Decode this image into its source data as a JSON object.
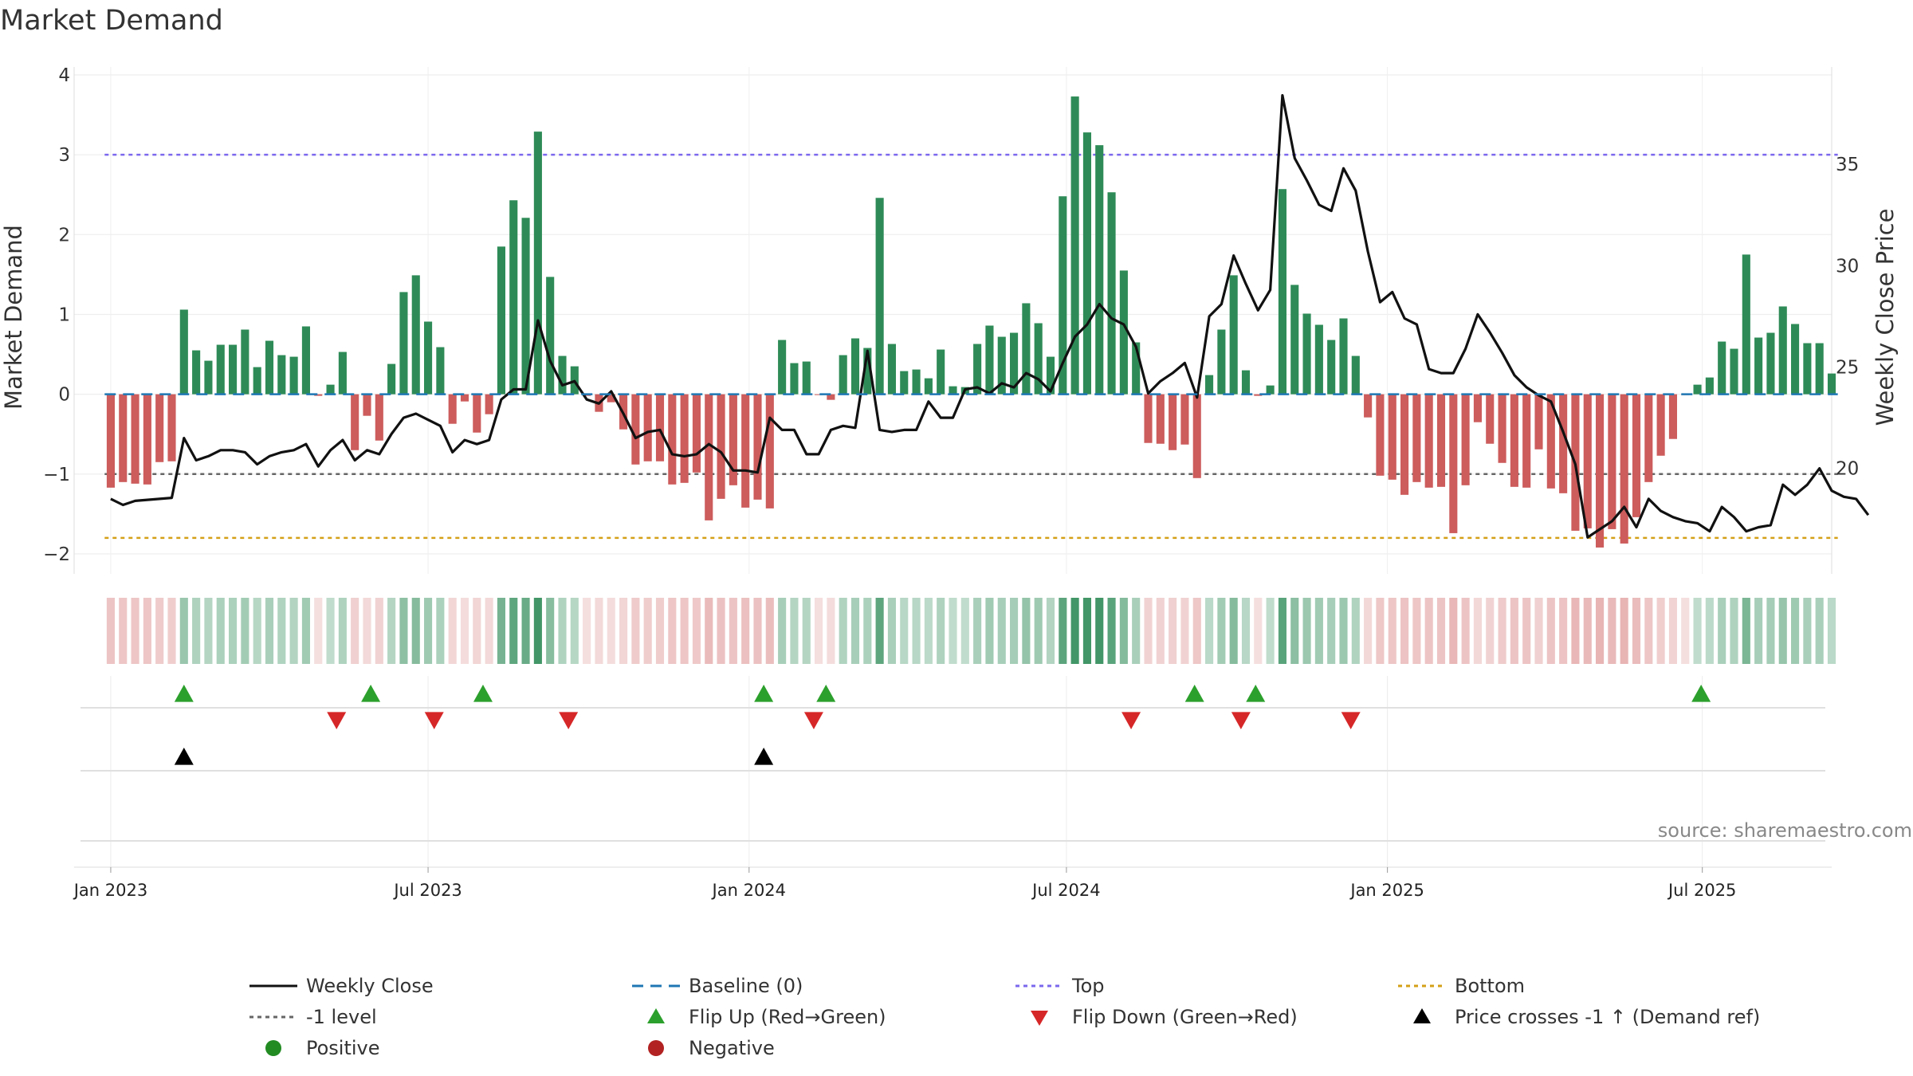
{
  "chart_data": {
    "type": "bar",
    "title": "Market Demand",
    "ylabel": "Market Demand",
    "y2label": "Weekly Close Price",
    "ylim": [
      -2.25,
      4.1
    ],
    "y2lim": [
      14.8,
      39.8
    ],
    "yticks": [
      -2,
      -1,
      0,
      1,
      2,
      3,
      4
    ],
    "y2ticks": [
      20,
      25,
      30,
      35
    ],
    "xlim": [
      -3,
      141
    ],
    "x_date_ticks": [
      {
        "label": "Jan 2023",
        "week": 0
      },
      {
        "label": "Jul 2023",
        "week": 26
      },
      {
        "label": "Jan 2024",
        "week": 52.3
      },
      {
        "label": "Jul 2024",
        "week": 78.3
      },
      {
        "label": "Jan 2025",
        "week": 104.6
      },
      {
        "label": "Jul 2025",
        "week": 130.4
      }
    ],
    "reference_lines": {
      "baseline": 0,
      "top": 3,
      "minus_one": -1,
      "bottom": -1.8
    },
    "demand": [
      -1.17,
      -1.1,
      -1.12,
      -1.13,
      -0.85,
      -0.84,
      1.06,
      0.55,
      0.42,
      0.62,
      0.62,
      0.81,
      0.34,
      0.67,
      0.49,
      0.47,
      0.85,
      -0.02,
      0.12,
      0.53,
      -0.7,
      -0.27,
      -0.58,
      0.38,
      1.28,
      1.49,
      0.91,
      0.59,
      -0.37,
      -0.09,
      -0.48,
      -0.25,
      1.85,
      2.43,
      2.21,
      3.29,
      1.47,
      0.48,
      0.35,
      -0.02,
      -0.22,
      -0.1,
      -0.44,
      -0.88,
      -0.84,
      -0.84,
      -1.13,
      -1.11,
      -0.98,
      -1.58,
      -1.31,
      -1.14,
      -1.42,
      -1.32,
      -1.43,
      0.68,
      0.39,
      0.41,
      -0.01,
      -0.07,
      0.49,
      0.7,
      0.58,
      2.46,
      0.63,
      0.29,
      0.31,
      0.2,
      0.56,
      0.1,
      0.09,
      0.63,
      0.86,
      0.72,
      0.77,
      1.14,
      0.89,
      0.47,
      2.48,
      3.73,
      3.28,
      3.12,
      2.53,
      1.55,
      0.65,
      -0.61,
      -0.62,
      -0.7,
      -0.63,
      -1.05,
      0.24,
      0.81,
      1.49,
      0.3,
      -0.02,
      0.11,
      2.57,
      1.37,
      1.01,
      0.87,
      0.68,
      0.95,
      0.48,
      -0.29,
      -1.02,
      -1.07,
      -1.26,
      -1.1,
      -1.17,
      -1.16,
      -1.74,
      -1.14,
      -0.35,
      -0.62,
      -0.86,
      -1.16,
      -1.17,
      -0.69,
      -1.18,
      -1.24,
      -1.71,
      -1.68,
      -1.92,
      -1.69,
      -1.87,
      -1.54,
      -1.1,
      -0.77,
      -0.56,
      -0.01,
      0.12,
      0.21,
      0.66,
      0.57,
      1.75,
      0.71,
      0.77,
      1.1,
      0.88,
      0.64,
      0.64,
      0.26
    ],
    "weekly_close": [
      18.5,
      18.2,
      18.4,
      18.45,
      18.5,
      18.55,
      21.5,
      20.4,
      20.6,
      20.9,
      20.9,
      20.8,
      20.2,
      20.6,
      20.8,
      20.9,
      21.2,
      20.1,
      20.9,
      21.4,
      20.4,
      20.9,
      20.7,
      21.7,
      22.5,
      22.7,
      22.4,
      22.1,
      20.8,
      21.4,
      21.2,
      21.4,
      23.4,
      23.9,
      23.9,
      27.3,
      25.3,
      24.1,
      24.3,
      23.4,
      23.2,
      23.8,
      22.7,
      21.5,
      21.8,
      21.9,
      20.7,
      20.6,
      20.7,
      21.2,
      20.8,
      19.9,
      19.9,
      19.8,
      22.5,
      21.9,
      21.9,
      20.7,
      20.7,
      21.9,
      22.1,
      22.0,
      25.8,
      21.9,
      21.8,
      21.9,
      21.9,
      23.3,
      22.5,
      22.5,
      23.9,
      24.0,
      23.7,
      24.2,
      24.0,
      24.7,
      24.4,
      23.8,
      25.2,
      26.5,
      27.1,
      28.1,
      27.4,
      27.1,
      26.0,
      23.7,
      24.3,
      24.7,
      25.2,
      23.5,
      27.5,
      28.1,
      30.5,
      29.1,
      27.8,
      28.8,
      38.4,
      35.3,
      34.2,
      33.0,
      32.7,
      34.8,
      33.7,
      30.7,
      28.2,
      28.7,
      27.4,
      27.1,
      24.9,
      24.7,
      24.7,
      25.9,
      27.6,
      26.7,
      25.7,
      24.6,
      24.0,
      23.6,
      23.3,
      21.8,
      20.2,
      16.6,
      17.0,
      17.4,
      18.1,
      17.1,
      18.5,
      17.9,
      17.6,
      17.4,
      17.3,
      16.9,
      18.1,
      17.6,
      16.9,
      17.1,
      17.2,
      19.2,
      18.7,
      19.2,
      20.0,
      18.9,
      18.6,
      18.5,
      17.7
    ],
    "flip_up_weeks": [
      6,
      21.3,
      30.5,
      53.5,
      58.6,
      88.8,
      93.8,
      130.3
    ],
    "flip_down_weeks": [
      18.5,
      26.5,
      37.5,
      57.6,
      83.6,
      92.6,
      101.6
    ],
    "price_cross_weeks": [
      6,
      53.5
    ],
    "legend": [
      {
        "key": "weekly_close",
        "label": "Weekly Close"
      },
      {
        "key": "baseline",
        "label": "Baseline (0)"
      },
      {
        "key": "top",
        "label": "Top"
      },
      {
        "key": "bottom",
        "label": "Bottom"
      },
      {
        "key": "minus_one",
        "label": "-1 level"
      },
      {
        "key": "flip_up",
        "label": "Flip Up (Red→Green)"
      },
      {
        "key": "flip_down",
        "label": "Flip Down (Green→Red)"
      },
      {
        "key": "price_cross",
        "label": "Price crosses -1 ↑ (Demand ref)"
      },
      {
        "key": "positive",
        "label": "Positive"
      },
      {
        "key": "negative",
        "label": "Negative"
      }
    ],
    "source": "source: sharemaestro.com"
  },
  "colors": {
    "positive_bar": "#2e8b57",
    "negative_bar": "#cd5c5c",
    "price_line": "#111111",
    "baseline": "#1f77b4",
    "top": "#7b68ee",
    "minus_one": "#666666",
    "bottom": "#d4a017",
    "flip_up": "#2ca02c",
    "flip_down": "#d62728",
    "price_cross": "#000000",
    "positive_dot": "#228b22",
    "negative_dot": "#b22222"
  }
}
